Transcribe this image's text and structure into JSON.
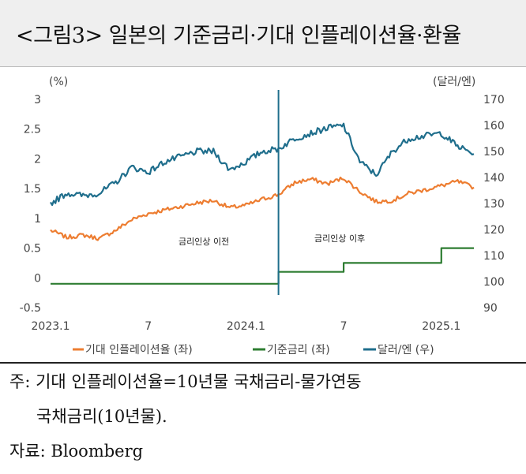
{
  "title": "<그림3> 일본의 기준금리·기대 인플레이션율·환율",
  "notes": {
    "line1": "주: 기대 인플레이션율=10년물 국채금리-물가연동",
    "line2": "국채금리(10년물).",
    "source": "자료: Bloomberg"
  },
  "chart_data": {
    "type": "line",
    "left_axis": {
      "unit": "(%)",
      "min": -0.5,
      "max": 3,
      "ticks": [
        "3",
        "2.5",
        "2",
        "1.5",
        "1",
        "0.5",
        "0",
        "-0.5"
      ]
    },
    "right_axis": {
      "unit": "(달러/엔)",
      "min": 90,
      "max": 170,
      "ticks": [
        "170",
        "160",
        "150",
        "140",
        "130",
        "120",
        "110",
        "100",
        "90"
      ]
    },
    "x_axis": {
      "start": "2023.1",
      "end": "2025.3",
      "ticks": [
        "2023.1",
        "7",
        "2024.1",
        "7",
        "2025.1"
      ]
    },
    "event_line": {
      "date": "2024.3"
    },
    "annotations": [
      {
        "text": "금리인상 이전"
      },
      {
        "text": "금리인상 이후"
      }
    ],
    "legend": [
      "기대 인플레이션율 (좌)",
      "기준금리 (좌)",
      "달러/엔 (우)"
    ],
    "series": [
      {
        "name": "기대 인플레이션율 (좌)",
        "axis": "left",
        "color": "#ed7d31",
        "points": [
          [
            "2023-01",
            0.8
          ],
          [
            "2023-02",
            0.68
          ],
          [
            "2023-03",
            0.72
          ],
          [
            "2023-04",
            0.66
          ],
          [
            "2023-05",
            0.8
          ],
          [
            "2023-06",
            0.98
          ],
          [
            "2023-07",
            1.08
          ],
          [
            "2023-08",
            1.14
          ],
          [
            "2023-09",
            1.2
          ],
          [
            "2023-10",
            1.26
          ],
          [
            "2023-11",
            1.3
          ],
          [
            "2023-12",
            1.18
          ],
          [
            "2024-01",
            1.22
          ],
          [
            "2024-02",
            1.32
          ],
          [
            "2024-03",
            1.4
          ],
          [
            "2024-04",
            1.6
          ],
          [
            "2024-05",
            1.66
          ],
          [
            "2024-06",
            1.58
          ],
          [
            "2024-07",
            1.68
          ],
          [
            "2024-08",
            1.45
          ],
          [
            "2024-09",
            1.28
          ],
          [
            "2024-10",
            1.3
          ],
          [
            "2024-11",
            1.42
          ],
          [
            "2024-12",
            1.48
          ],
          [
            "2025-01",
            1.55
          ],
          [
            "2025-02",
            1.62
          ],
          [
            "2025-03",
            1.52
          ]
        ]
      },
      {
        "name": "기준금리 (좌)",
        "axis": "left",
        "color": "#2e7d32",
        "points": [
          [
            "2023-01",
            -0.1
          ],
          [
            "2024-03",
            -0.1
          ],
          [
            "2024-03",
            0.1
          ],
          [
            "2024-07",
            0.1
          ],
          [
            "2024-07",
            0.25
          ],
          [
            "2025-01",
            0.25
          ],
          [
            "2025-01",
            0.5
          ],
          [
            "2025-03",
            0.5
          ]
        ]
      },
      {
        "name": "달러/엔 (우)",
        "axis": "right",
        "color": "#1f6e8c",
        "points": [
          [
            "2023-01",
            130
          ],
          [
            "2023-02",
            134
          ],
          [
            "2023-03",
            133
          ],
          [
            "2023-04",
            134
          ],
          [
            "2023-05",
            138
          ],
          [
            "2023-06",
            144
          ],
          [
            "2023-07",
            142
          ],
          [
            "2023-08",
            146
          ],
          [
            "2023-09",
            148
          ],
          [
            "2023-10",
            150
          ],
          [
            "2023-11",
            150
          ],
          [
            "2023-12",
            143
          ],
          [
            "2024-01",
            146
          ],
          [
            "2024-02",
            150
          ],
          [
            "2024-03",
            151
          ],
          [
            "2024-04",
            155
          ],
          [
            "2024-05",
            157
          ],
          [
            "2024-06",
            159
          ],
          [
            "2024-07",
            160
          ],
          [
            "2024-08",
            146
          ],
          [
            "2024-09",
            141
          ],
          [
            "2024-10",
            150
          ],
          [
            "2024-11",
            155
          ],
          [
            "2024-12",
            156
          ],
          [
            "2025-01",
            157
          ],
          [
            "2025-02",
            152
          ],
          [
            "2025-03",
            149
          ]
        ]
      }
    ]
  }
}
